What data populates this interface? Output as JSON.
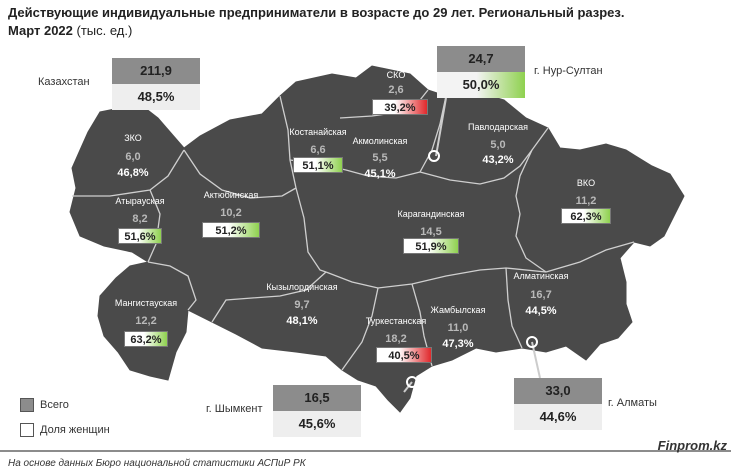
{
  "title": {
    "line1": "Действующие индивидуальные предприниматели в возрасте до 29 лет. Региональный разрез.",
    "line2_bold": "Март 2022",
    "line2_rest": " (тыс. ед.)"
  },
  "colors": {
    "map_fill": "#4a4a4a",
    "border": "#cfcfcf",
    "high": "#8fd14f",
    "low": "#e0282b"
  },
  "regions": [
    {
      "id": "zko",
      "name": "ЗКО",
      "value": "6,0",
      "share": "46,8%",
      "highlight": ""
    },
    {
      "id": "atyrau",
      "name": "Атырауская",
      "value": "8,2",
      "share": "51,6%",
      "highlight": "green"
    },
    {
      "id": "mangystau",
      "name": "Мангистауская",
      "value": "12,2",
      "share": "63,2%",
      "highlight": "green"
    },
    {
      "id": "aktobe",
      "name": "Актюбинская",
      "value": "10,2",
      "share": "51,2%",
      "highlight": "green"
    },
    {
      "id": "kostanay",
      "name": "Костанайская",
      "value": "6,6",
      "share": "51,1%",
      "highlight": "green"
    },
    {
      "id": "sko",
      "name": "СКО",
      "value": "2,6",
      "share": "39,2%",
      "highlight": "red"
    },
    {
      "id": "akmola",
      "name": "Акмолинская",
      "value": "5,5",
      "share": "45,1%",
      "highlight": ""
    },
    {
      "id": "pavlodar",
      "name": "Павлодарская",
      "value": "5,0",
      "share": "43,2%",
      "highlight": ""
    },
    {
      "id": "vko",
      "name": "ВКО",
      "value": "11,2",
      "share": "62,3%",
      "highlight": "green"
    },
    {
      "id": "karaganda",
      "name": "Карагандинская",
      "value": "14,5",
      "share": "51,9%",
      "highlight": "green"
    },
    {
      "id": "kyzylorda",
      "name": "Кызылординская",
      "value": "9,7",
      "share": "48,1%",
      "highlight": ""
    },
    {
      "id": "turkestan",
      "name": "Туркестанская",
      "value": "18,2",
      "share": "40,5%",
      "highlight": "red"
    },
    {
      "id": "zhambyl",
      "name": "Жамбылская",
      "value": "11,0",
      "share": "47,3%",
      "highlight": ""
    },
    {
      "id": "almaty_reg",
      "name": "Алматинская",
      "value": "16,7",
      "share": "44,5%",
      "highlight": ""
    }
  ],
  "callouts": {
    "kazakhstan": {
      "name": "Казахстан",
      "value": "211,9",
      "share": "48,5%"
    },
    "nur_sultan": {
      "name": "г. Нур-Султан",
      "value": "24,7",
      "share": "50,0%"
    },
    "shymkent": {
      "name": "г. Шымкент",
      "value": "16,5",
      "share": "45,6%"
    },
    "almaty": {
      "name": "г. Алматы",
      "value": "33,0",
      "share": "44,6%"
    }
  },
  "legend": {
    "total": "Всего",
    "women_share": "Доля женщин"
  },
  "footer": {
    "source": "На основе данных Бюро национальной статистики АСПиР РК",
    "brand": "Finprom.kz"
  }
}
